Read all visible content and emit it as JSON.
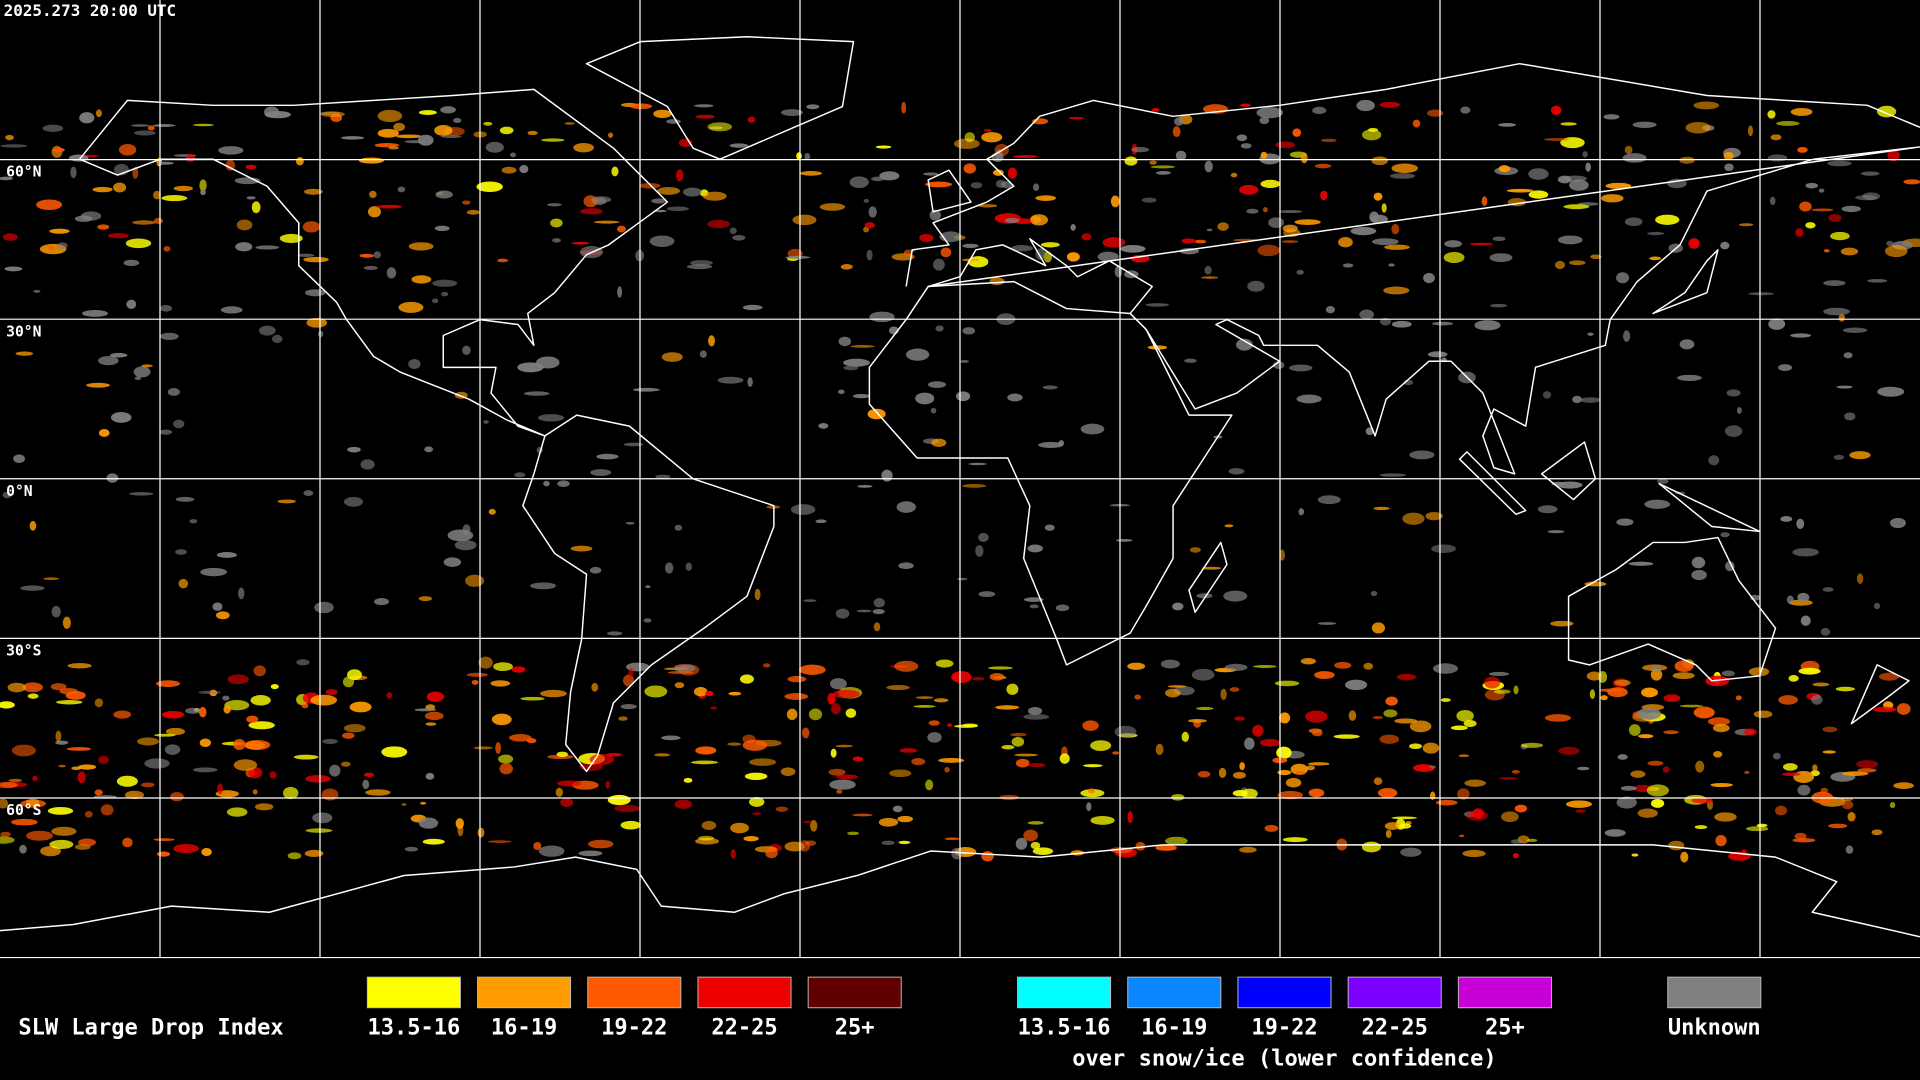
{
  "header": {
    "timestamp": "2025.273 20:00 UTC"
  },
  "latitude_labels": [
    "60°N",
    "30°N",
    "0°N",
    "30°S",
    "60°S"
  ],
  "legend": {
    "title": "SLW Large Drop Index",
    "groups": [
      {
        "items": [
          {
            "label": "13.5-16",
            "color": "#ffff00"
          },
          {
            "label": "16-19",
            "color": "#ff9c00"
          },
          {
            "label": "19-22",
            "color": "#ff5a00"
          },
          {
            "label": "22-25",
            "color": "#ee0000"
          },
          {
            "label": "25+",
            "color": "#600000"
          }
        ]
      },
      {
        "items": [
          {
            "label": "13.5-16",
            "color": "#00ffff"
          },
          {
            "label": "16-19",
            "color": "#0a84ff"
          },
          {
            "label": "19-22",
            "color": "#0000ff"
          },
          {
            "label": "22-25",
            "color": "#7b00ff"
          },
          {
            "label": "25+",
            "color": "#c800d8"
          }
        ],
        "note": "over snow/ice (lower confidence)"
      },
      {
        "items": [
          {
            "label": "Unknown",
            "color": "#808080"
          }
        ]
      }
    ]
  }
}
